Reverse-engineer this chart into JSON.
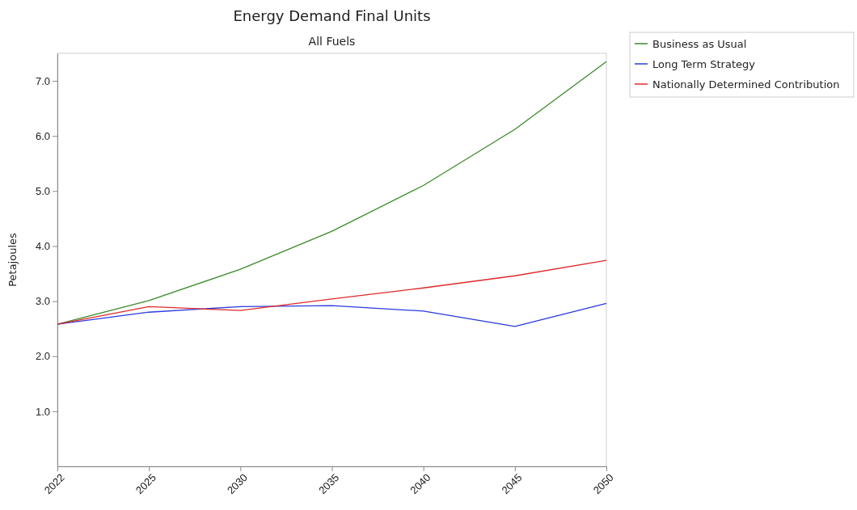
{
  "chart_data": {
    "type": "line",
    "title": "Energy Demand Final Units",
    "subtitle": "All Fuels",
    "ylabel": "Petajoules",
    "categories": [
      "2022",
      "2025",
      "2030",
      "2035",
      "2040",
      "2045",
      "2050"
    ],
    "series": [
      {
        "name": "Business as Usual",
        "color": "#3a8a2a",
        "values": [
          2.58,
          3.01,
          3.58,
          4.27,
          5.1,
          6.12,
          7.35
        ]
      },
      {
        "name": "Long Term Strategy",
        "color": "#2a3adc",
        "values": [
          2.58,
          2.8,
          2.9,
          2.92,
          2.82,
          2.54,
          2.96
        ]
      },
      {
        "name": "Nationally Determined Contribution",
        "color": "#e02828",
        "values": [
          2.58,
          2.9,
          2.83,
          3.04,
          3.24,
          3.46,
          3.74
        ]
      }
    ],
    "ylim": [
      0,
      7.5
    ],
    "yticks": [
      {
        "value": 1,
        "label": "1.0"
      },
      {
        "value": 2,
        "label": "2.0"
      },
      {
        "value": 3,
        "label": "3.0"
      },
      {
        "value": 4,
        "label": "4.0"
      },
      {
        "value": 5,
        "label": "5.0"
      },
      {
        "value": 6,
        "label": "6.0"
      },
      {
        "value": 7,
        "label": "7.0"
      }
    ],
    "legend": "top right",
    "grid": false,
    "marker": "none",
    "line_style": "solid"
  }
}
